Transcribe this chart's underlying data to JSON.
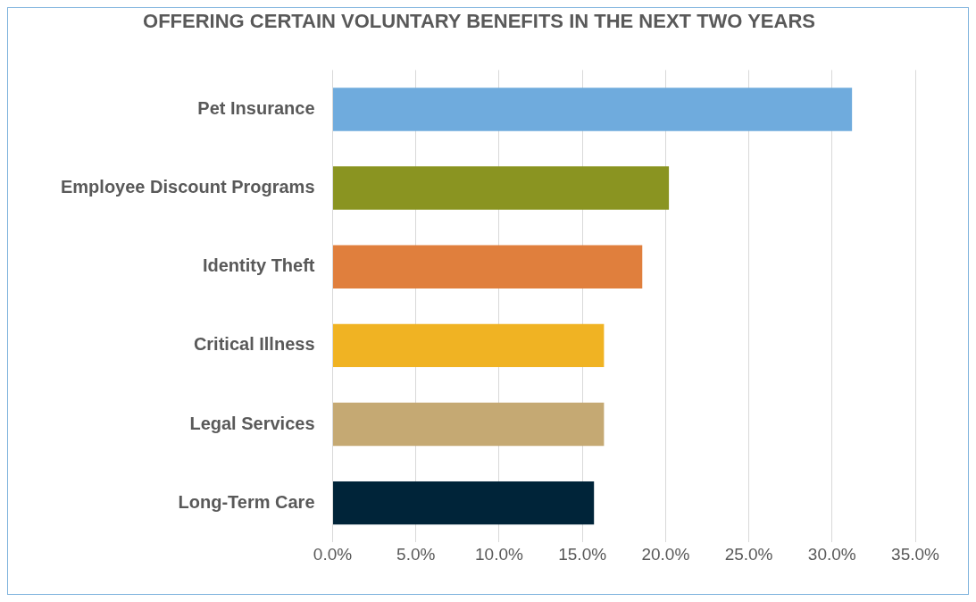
{
  "chart_data": {
    "type": "bar",
    "orientation": "horizontal",
    "title": "OFFERING CERTAIN VOLUNTARY BENEFITS IN THE NEXT TWO YEARS",
    "categories": [
      "Pet Insurance",
      "Employee Discount Programs",
      "Identity Theft",
      "Critical Illness",
      "Legal Services",
      "Long-Term Care"
    ],
    "values": [
      31.2,
      20.2,
      18.6,
      16.3,
      16.3,
      15.7
    ],
    "colors": [
      "#6fabdd",
      "#8a9421",
      "#e07f3d",
      "#f0b323",
      "#c5a973",
      "#002439"
    ],
    "xlim": [
      0,
      35
    ],
    "xticks": [
      {
        "value": 0,
        "label": "0.0%"
      },
      {
        "value": 5,
        "label": "5.0%"
      },
      {
        "value": 10,
        "label": "10.0%"
      },
      {
        "value": 15,
        "label": "15.0%"
      },
      {
        "value": 20,
        "label": "20.0%"
      },
      {
        "value": 25,
        "label": "25.0%"
      },
      {
        "value": 30,
        "label": "30.0%"
      },
      {
        "value": 35,
        "label": "35.0%"
      }
    ],
    "grid": "x",
    "legend": false
  }
}
